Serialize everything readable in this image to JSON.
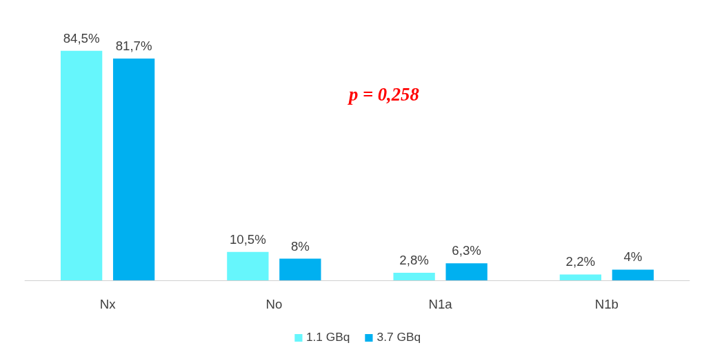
{
  "chart_data": {
    "type": "bar",
    "categories": [
      "Nx",
      "No",
      "N1a",
      "N1b"
    ],
    "series": [
      {
        "name": "1.1 GBq",
        "color": "#66f6fc",
        "values": [
          84.5,
          10.5,
          2.8,
          2.2
        ],
        "value_labels": [
          "84,5%",
          "10,5%",
          "2,8%",
          "2,2%"
        ]
      },
      {
        "name": "3.7 GBq",
        "color": "#00b0f0",
        "values": [
          81.7,
          8,
          6.3,
          4
        ],
        "value_labels": [
          "81,7%",
          "8%",
          "6,3%",
          "4%"
        ]
      }
    ],
    "annotations": [
      "p = 0,258"
    ],
    "legend": "bottom",
    "tick_labels": "x"
  }
}
